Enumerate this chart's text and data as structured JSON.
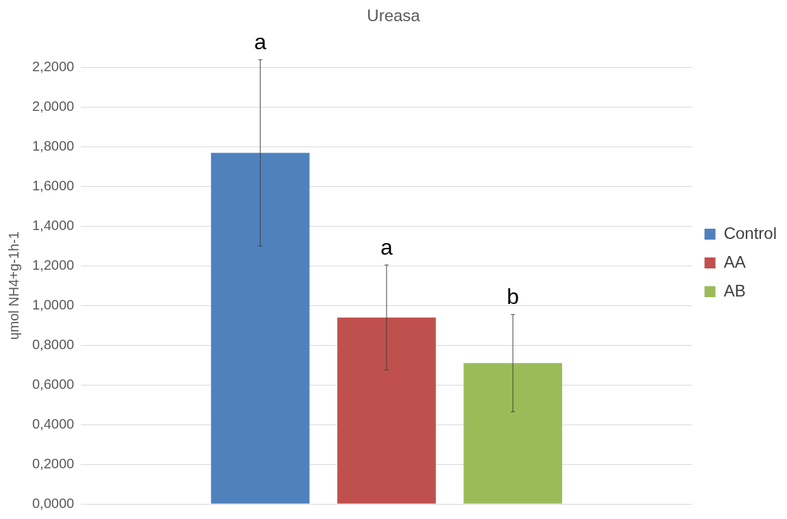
{
  "chart_data": {
    "type": "bar",
    "title": "Ureasa",
    "ylabel": "ɥmol NH4+g-1h-1",
    "categories": [
      null
    ],
    "series": [
      {
        "name": "Control",
        "color": "#4f81bd",
        "values": [
          1.77
        ],
        "errors": [
          0.47
        ]
      },
      {
        "name": "AA",
        "color": "#c0504d",
        "values": [
          0.94
        ],
        "errors": [
          0.265
        ]
      },
      {
        "name": "AB",
        "color": "#9bbb59",
        "values": [
          0.71
        ],
        "errors": [
          0.245
        ]
      }
    ],
    "ylim": [
      0,
      2.2
    ],
    "yticks": [
      {
        "value": 0,
        "label": "0,0000"
      },
      {
        "value": 0.2,
        "label": "0,2000"
      },
      {
        "value": 0.4,
        "label": "0,4000"
      },
      {
        "value": 0.6,
        "label": "0,6000"
      },
      {
        "value": 0.8,
        "label": "0,8000"
      },
      {
        "value": 1,
        "label": "1,0000"
      },
      {
        "value": 1.2,
        "label": "1,2000"
      },
      {
        "value": 1.4,
        "label": "1,4000"
      },
      {
        "value": 1.6,
        "label": "1,6000"
      },
      {
        "value": 1.8,
        "label": "1,8000"
      },
      {
        "value": 2,
        "label": "2,0000"
      },
      {
        "value": 2.2,
        "label": "2,2000"
      }
    ],
    "annotations": [
      {
        "text": "a",
        "y": 2.24
      },
      {
        "text": "a",
        "y": 1.205
      },
      {
        "text": "b",
        "y": 0.955
      }
    ],
    "grid": "y",
    "legend": "right"
  }
}
